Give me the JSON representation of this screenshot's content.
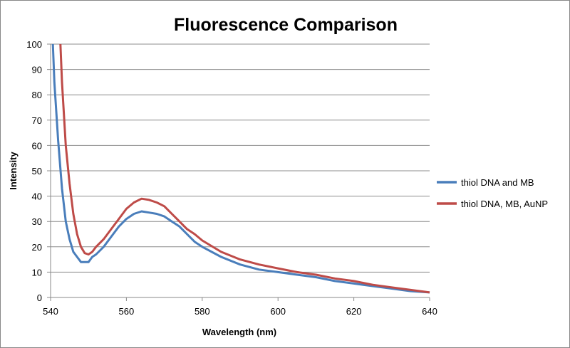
{
  "chart_data": {
    "type": "line",
    "title": "Fluorescence Comparison",
    "xlabel": "Wavelength (nm)",
    "ylabel": "Intensity",
    "xlim": [
      540,
      640
    ],
    "ylim": [
      0,
      100
    ],
    "xticks": [
      540,
      560,
      580,
      600,
      620,
      640
    ],
    "yticks": [
      0,
      10,
      20,
      30,
      40,
      50,
      60,
      70,
      80,
      90,
      100
    ],
    "grid": "horizontal",
    "legend": "right",
    "series": [
      {
        "name": "thiol DNA and MB",
        "color": "#4a7ebb",
        "x": [
          540.6,
          541,
          542,
          543,
          544,
          545,
          546,
          547,
          548,
          549,
          550,
          551,
          552,
          554,
          556,
          558,
          560,
          562,
          564,
          566,
          568,
          570,
          572,
          574,
          576,
          578,
          580,
          585,
          590,
          595,
          600,
          605,
          610,
          615,
          620,
          625,
          630,
          635,
          640
        ],
        "y": [
          100,
          85,
          62,
          43,
          30,
          23,
          18,
          16,
          14,
          14,
          14,
          16,
          17,
          20,
          24,
          28,
          31,
          33,
          34,
          33.5,
          33,
          32,
          30,
          28,
          25,
          22,
          20,
          16,
          13,
          11,
          10,
          9,
          8,
          6.5,
          5.5,
          4.5,
          3.5,
          2.5,
          2
        ]
      },
      {
        "name": "thiol DNA, MB, AuNP",
        "color": "#be4b48",
        "x": [
          542.6,
          543,
          544,
          545,
          546,
          547,
          548,
          549,
          550,
          551,
          552,
          554,
          556,
          558,
          560,
          562,
          564,
          566,
          568,
          570,
          572,
          574,
          576,
          578,
          580,
          585,
          590,
          595,
          600,
          605,
          610,
          615,
          620,
          625,
          630,
          635,
          640
        ],
        "y": [
          100,
          85,
          60,
          45,
          33,
          25,
          20,
          17.5,
          17,
          18,
          20,
          23,
          27,
          31,
          35,
          37.5,
          39,
          38.5,
          37.5,
          36,
          33,
          30,
          27,
          25,
          22.5,
          18,
          15,
          13,
          11.5,
          10,
          9,
          7.5,
          6.5,
          5,
          4,
          3,
          2
        ]
      }
    ]
  }
}
